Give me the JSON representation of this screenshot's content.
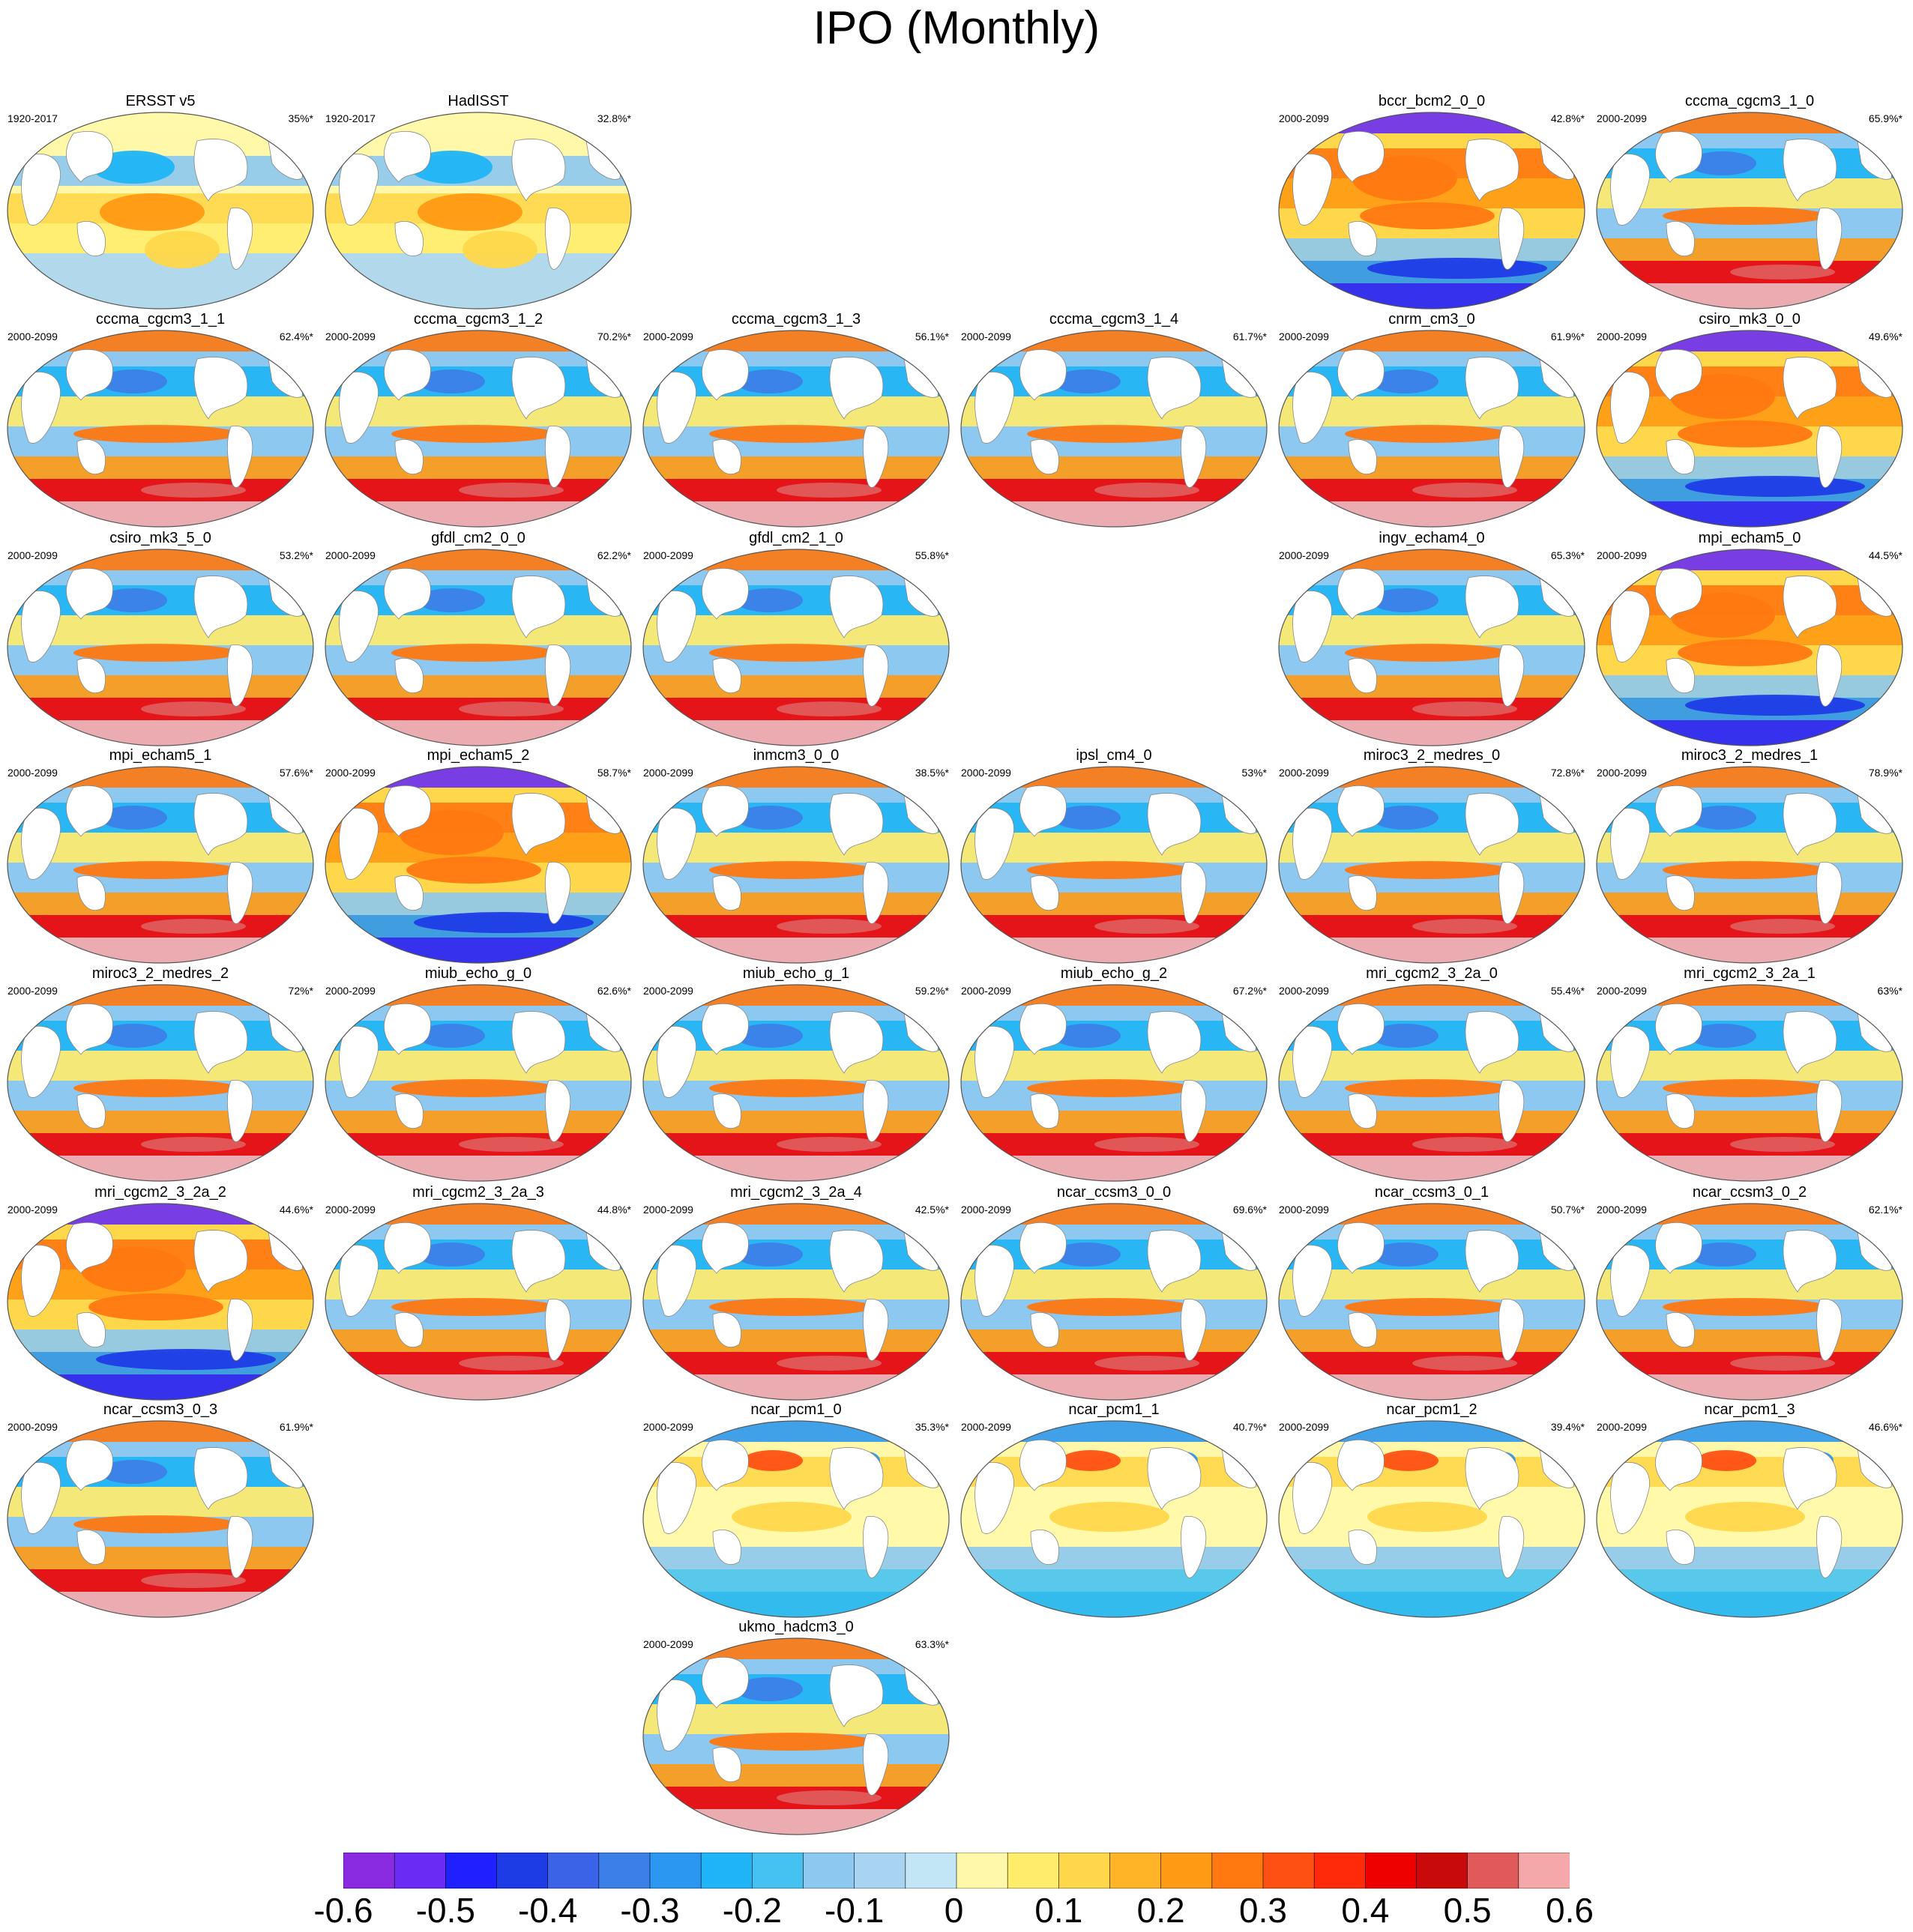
{
  "title": "IPO (Monthly)",
  "chart_data": {
    "type": "heatmap",
    "title": "IPO (Monthly)",
    "description_kind": "global SST regression maps (Robinson projection) per dataset/model",
    "panels": [
      {
        "name": "ERSST v5",
        "years": "1920-2017",
        "pct": "35%*",
        "pattern": "obs"
      },
      {
        "name": "HadISST",
        "years": "1920-2017",
        "pct": "32.8%*",
        "pattern": "obs"
      },
      {
        "name": "bccr_bcm2_0_0",
        "years": "2000-2099",
        "pct": "42.8%*",
        "pattern": "warmblue"
      },
      {
        "name": "cccma_cgcm3_1_0",
        "years": "2000-2099",
        "pct": "65.9%*",
        "pattern": "south"
      },
      {
        "name": "cccma_cgcm3_1_1",
        "years": "2000-2099",
        "pct": "62.4%*",
        "pattern": "south"
      },
      {
        "name": "cccma_cgcm3_1_2",
        "years": "2000-2099",
        "pct": "70.2%*",
        "pattern": "south"
      },
      {
        "name": "cccma_cgcm3_1_3",
        "years": "2000-2099",
        "pct": "56.1%*",
        "pattern": "south"
      },
      {
        "name": "cccma_cgcm3_1_4",
        "years": "2000-2099",
        "pct": "61.7%*",
        "pattern": "south"
      },
      {
        "name": "cnrm_cm3_0",
        "years": "2000-2099",
        "pct": "61.9%*",
        "pattern": "south"
      },
      {
        "name": "csiro_mk3_0_0",
        "years": "2000-2099",
        "pct": "49.6%*",
        "pattern": "warmblue"
      },
      {
        "name": "csiro_mk3_5_0",
        "years": "2000-2099",
        "pct": "53.2%*",
        "pattern": "south"
      },
      {
        "name": "gfdl_cm2_0_0",
        "years": "2000-2099",
        "pct": "62.2%*",
        "pattern": "south"
      },
      {
        "name": "gfdl_cm2_1_0",
        "years": "2000-2099",
        "pct": "55.8%*",
        "pattern": "south"
      },
      {
        "name": "ingv_echam4_0",
        "years": "2000-2099",
        "pct": "65.3%*",
        "pattern": "south"
      },
      {
        "name": "mpi_echam5_0",
        "years": "2000-2099",
        "pct": "44.5%*",
        "pattern": "warmblue"
      },
      {
        "name": "mpi_echam5_1",
        "years": "2000-2099",
        "pct": "57.6%*",
        "pattern": "south"
      },
      {
        "name": "mpi_echam5_2",
        "years": "2000-2099",
        "pct": "58.7%*",
        "pattern": "warmblue"
      },
      {
        "name": "inmcm3_0_0",
        "years": "2000-2099",
        "pct": "38.5%*",
        "pattern": "south"
      },
      {
        "name": "ipsl_cm4_0",
        "years": "2000-2099",
        "pct": "53%*",
        "pattern": "south"
      },
      {
        "name": "miroc3_2_medres_0",
        "years": "2000-2099",
        "pct": "72.8%*",
        "pattern": "south"
      },
      {
        "name": "miroc3_2_medres_1",
        "years": "2000-2099",
        "pct": "78.9%*",
        "pattern": "south"
      },
      {
        "name": "miroc3_2_medres_2",
        "years": "2000-2099",
        "pct": "72%*",
        "pattern": "south"
      },
      {
        "name": "miub_echo_g_0",
        "years": "2000-2099",
        "pct": "62.6%*",
        "pattern": "south"
      },
      {
        "name": "miub_echo_g_1",
        "years": "2000-2099",
        "pct": "59.2%*",
        "pattern": "south"
      },
      {
        "name": "miub_echo_g_2",
        "years": "2000-2099",
        "pct": "67.2%*",
        "pattern": "south"
      },
      {
        "name": "mri_cgcm2_3_2a_0",
        "years": "2000-2099",
        "pct": "55.4%*",
        "pattern": "south"
      },
      {
        "name": "mri_cgcm2_3_2a_1",
        "years": "2000-2099",
        "pct": "63%*",
        "pattern": "south"
      },
      {
        "name": "mri_cgcm2_3_2a_2",
        "years": "2000-2099",
        "pct": "44.6%*",
        "pattern": "warmblue"
      },
      {
        "name": "mri_cgcm2_3_2a_3",
        "years": "2000-2099",
        "pct": "44.8%*",
        "pattern": "south"
      },
      {
        "name": "mri_cgcm2_3_2a_4",
        "years": "2000-2099",
        "pct": "42.5%*",
        "pattern": "south"
      },
      {
        "name": "ncar_ccsm3_0_0",
        "years": "2000-2099",
        "pct": "69.6%*",
        "pattern": "south"
      },
      {
        "name": "ncar_ccsm3_0_1",
        "years": "2000-2099",
        "pct": "50.7%*",
        "pattern": "south"
      },
      {
        "name": "ncar_ccsm3_0_2",
        "years": "2000-2099",
        "pct": "62.1%*",
        "pattern": "south"
      },
      {
        "name": "ncar_ccsm3_0_3",
        "years": "2000-2099",
        "pct": "61.9%*",
        "pattern": "south"
      },
      {
        "name": "ncar_pcm1_0",
        "years": "2000-2099",
        "pct": "35.3%*",
        "pattern": "pcm"
      },
      {
        "name": "ncar_pcm1_1",
        "years": "2000-2099",
        "pct": "40.7%*",
        "pattern": "pcm"
      },
      {
        "name": "ncar_pcm1_2",
        "years": "2000-2099",
        "pct": "39.4%*",
        "pattern": "pcm"
      },
      {
        "name": "ncar_pcm1_3",
        "years": "2000-2099",
        "pct": "46.6%*",
        "pattern": "pcm"
      },
      {
        "name": "ukmo_hadcm3_0",
        "years": "2000-2099",
        "pct": "63.3%*",
        "pattern": "south"
      }
    ],
    "colorbar": {
      "colors": [
        "#8a2be2",
        "#6a2cf5",
        "#1f1fff",
        "#1e3ce6",
        "#3b63e8",
        "#3c7fe8",
        "#2b97f0",
        "#1eb4f5",
        "#46c2f2",
        "#8cc8f0",
        "#a8d4f2",
        "#c2e6f6",
        "#fff8a8",
        "#ffec6a",
        "#ffd74a",
        "#ffb428",
        "#ff9a14",
        "#ff7810",
        "#ff5014",
        "#ff2a0a",
        "#ee0000",
        "#c80a0a",
        "#e05a5a",
        "#f5a8aa"
      ],
      "tick_labels": [
        "-0.6",
        "-0.5",
        "-0.4",
        "-0.3",
        "-0.2",
        "-0.1",
        "0",
        "0.1",
        "0.2",
        "0.3",
        "0.4",
        "0.5",
        "0.6"
      ],
      "range": [
        -0.65,
        0.65
      ]
    }
  }
}
